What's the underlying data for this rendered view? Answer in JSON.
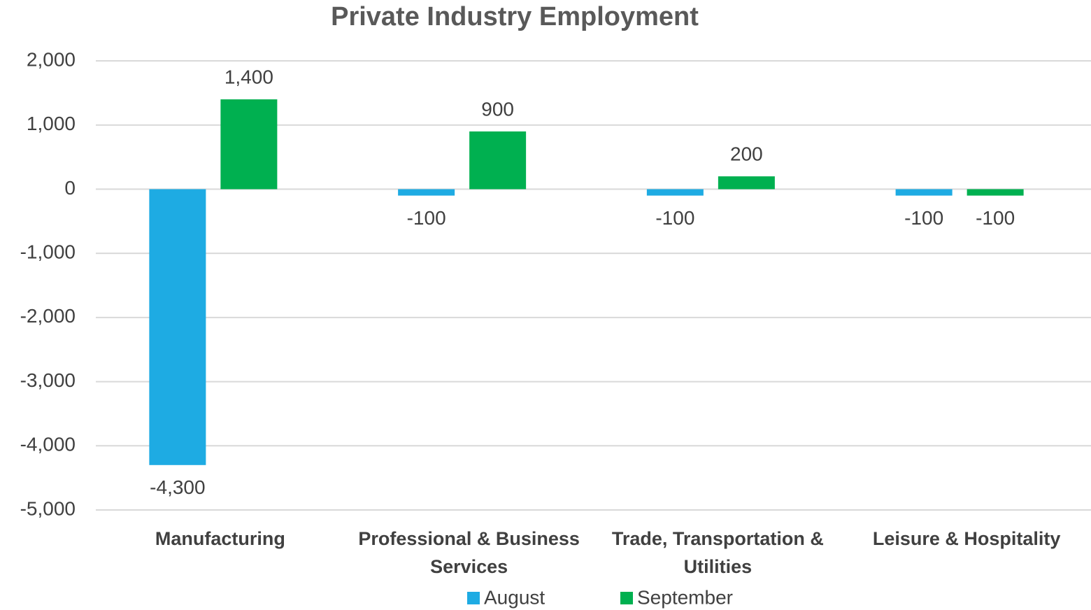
{
  "chart_data": {
    "type": "bar",
    "title": "Private Industry Employment",
    "categories": [
      "Manufacturing",
      "Professional & Business Services",
      "Trade, Transportation & Utilities",
      "Leisure & Hospitality"
    ],
    "series": [
      {
        "name": "August",
        "color": "#1eabe3",
        "values": [
          -4300,
          -100,
          -100,
          -100
        ],
        "value_labels": [
          "-4,300",
          "-100",
          "-100",
          "-100"
        ]
      },
      {
        "name": "September",
        "color": "#00b050",
        "values": [
          1400,
          900,
          200,
          -100
        ],
        "value_labels": [
          "1,400",
          "900",
          "200",
          "-100"
        ]
      }
    ],
    "ylim": [
      -5000,
      2000
    ],
    "yticks": [
      {
        "value": -5000,
        "label": "-5,000"
      },
      {
        "value": -4000,
        "label": "-4,000"
      },
      {
        "value": -3000,
        "label": "-3,000"
      },
      {
        "value": -2000,
        "label": "-2,000"
      },
      {
        "value": -1000,
        "label": "-1,000"
      },
      0,
      {
        "value": 1000,
        "label": "1,000"
      },
      {
        "value": 2000,
        "label": "2,000"
      }
    ],
    "grid": true,
    "legend": "bottom"
  }
}
